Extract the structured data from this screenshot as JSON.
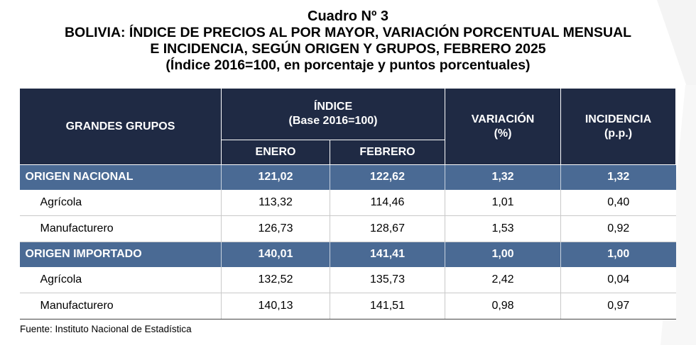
{
  "title": {
    "line1": "Cuadro Nº 3",
    "line2": "BOLIVIA: ÍNDICE DE PRECIOS AL POR MAYOR, VARIACIÓN PORCENTUAL MENSUAL",
    "line3": "E INCIDENCIA, SEGÚN ORIGEN Y GRUPOS, FEBRERO 2025",
    "line4": "(Índice 2016=100, en porcentaje y puntos porcentuales)"
  },
  "table": {
    "headers": {
      "group": "GRANDES GRUPOS",
      "index_line1": "ÍNDICE",
      "index_line2": "(Base 2016=100)",
      "january": "ENERO",
      "february": "FEBRERO",
      "variation_line1": "VARIACIÓN",
      "variation_line2": "(%)",
      "incidence_line1": "INCIDENCIA",
      "incidence_line2": "(p.p.)"
    },
    "rows": [
      {
        "label": "ORIGEN NACIONAL",
        "enero": "121,02",
        "febrero": "122,62",
        "variacion": "1,32",
        "incidencia": "1,32"
      },
      {
        "label": "Agrícola",
        "enero": "113,32",
        "febrero": "114,46",
        "variacion": "1,01",
        "incidencia": "0,40"
      },
      {
        "label": "Manufacturero",
        "enero": "126,73",
        "febrero": "128,67",
        "variacion": "1,53",
        "incidencia": "0,92"
      },
      {
        "label": "ORIGEN IMPORTADO",
        "enero": "140,01",
        "febrero": "141,41",
        "variacion": "1,00",
        "incidencia": "1,00"
      },
      {
        "label": "Agrícola",
        "enero": "132,52",
        "febrero": "135,73",
        "variacion": "2,42",
        "incidencia": "0,04"
      },
      {
        "label": "Manufacturero",
        "enero": "140,13",
        "febrero": "141,51",
        "variacion": "0,98",
        "incidencia": "0,97"
      }
    ]
  },
  "source": "Fuente: Instituto Nacional de Estadística",
  "colors": {
    "header_bg": "#1f2a44",
    "band_bg": "#4a6a94"
  }
}
